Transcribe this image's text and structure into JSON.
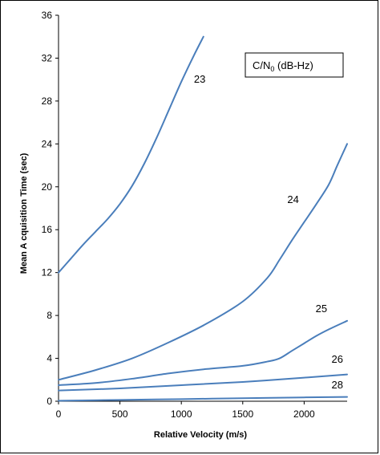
{
  "chart_data": {
    "type": "line",
    "title": "",
    "xlabel": "Relative Velocity (m/s)",
    "ylabel": "Mean A cquisition Time (sec)",
    "xlim": [
      0,
      2350
    ],
    "ylim": [
      0,
      36
    ],
    "x_ticks": [
      "0",
      "500",
      "1000",
      "1500",
      "2000"
    ],
    "y_ticks": [
      "0",
      "4",
      "8",
      "12",
      "16",
      "20",
      "24",
      "28",
      "32",
      "36"
    ],
    "legend_box": {
      "text_main": "C/N",
      "text_sub": "0",
      "text_unit": " (dB-Hz)"
    },
    "grid": false,
    "series_color": "#4a7ebb",
    "series": [
      {
        "name": "23",
        "x": [
          0,
          100,
          200,
          300,
          400,
          500,
          600,
          700,
          800,
          900,
          1000,
          1100,
          1180
        ],
        "y": [
          12,
          13.3,
          14.6,
          15.8,
          17.0,
          18.4,
          20.1,
          22.2,
          24.6,
          27.2,
          29.8,
          32.2,
          34
        ]
      },
      {
        "name": "24",
        "x": [
          0,
          300,
          600,
          900,
          1200,
          1500,
          1700,
          1800,
          1900,
          2000,
          2100,
          2200,
          2270,
          2350
        ],
        "y": [
          2,
          2.9,
          4.0,
          5.5,
          7.2,
          9.3,
          11.5,
          13.2,
          15.0,
          16.7,
          18.4,
          20.2,
          22.0,
          24
        ]
      },
      {
        "name": "25",
        "x": [
          0,
          300,
          600,
          900,
          1200,
          1500,
          1700,
          1800,
          1900,
          2000,
          2100,
          2200,
          2350
        ],
        "y": [
          1.5,
          1.7,
          2.1,
          2.6,
          3.0,
          3.3,
          3.7,
          4.0,
          4.7,
          5.4,
          6.1,
          6.7,
          7.5
        ]
      },
      {
        "name": "26",
        "x": [
          0,
          500,
          1000,
          1500,
          2000,
          2350
        ],
        "y": [
          1.0,
          1.2,
          1.5,
          1.8,
          2.2,
          2.5
        ]
      },
      {
        "name": "28",
        "x": [
          0,
          500,
          1000,
          1500,
          2000,
          2350
        ],
        "y": [
          0.05,
          0.12,
          0.2,
          0.28,
          0.36,
          0.4
        ]
      }
    ],
    "labels": [
      {
        "series": "23",
        "text": "23",
        "x": 1150,
        "y": 29.7
      },
      {
        "series": "24",
        "text": "24",
        "x": 1910,
        "y": 18.5
      },
      {
        "series": "25",
        "x": 2140,
        "y": 8.3,
        "text": "25"
      },
      {
        "series": "26",
        "text": "26",
        "x": 2270,
        "y": 3.6
      },
      {
        "series": "28",
        "text": "28",
        "x": 2270,
        "y": 1.2
      }
    ]
  }
}
